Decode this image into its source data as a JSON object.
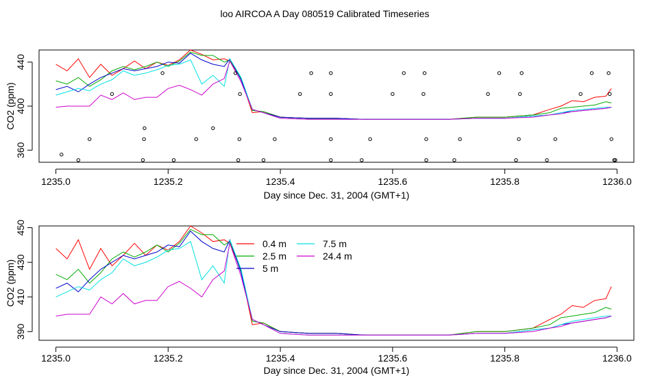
{
  "page": {
    "title": "loo AIRCOA A  Day 080519  Calibrated Timeseries"
  },
  "chart_data": [
    {
      "type": "line",
      "xlabel": "Day since Dec. 31, 2004 (GMT+1)",
      "ylabel": "CO2 (ppm)",
      "xlim": [
        1234.97,
        1236.03
      ],
      "ylim": [
        349,
        451
      ],
      "x_ticks": [
        1235.0,
        1235.2,
        1235.4,
        1235.6,
        1235.8,
        1236.0
      ],
      "x_tick_labels": [
        "1235.0",
        "1235.2",
        "1235.4",
        "1235.6",
        "1235.8",
        "1236.0"
      ],
      "y_ticks": [
        360,
        400,
        440
      ],
      "y_tick_labels": [
        "360",
        "400",
        "440"
      ],
      "grid": false,
      "series": [
        {
          "color": "#ff0000",
          "x": [
            1235.0,
            1235.02,
            1235.04,
            1235.06,
            1235.08,
            1235.1,
            1235.12,
            1235.14,
            1235.16,
            1235.18,
            1235.2,
            1235.22,
            1235.24,
            1235.26,
            1235.28,
            1235.3,
            1235.31,
            1235.33,
            1235.35,
            1235.37,
            1235.4,
            1235.45,
            1235.5,
            1235.55,
            1235.6,
            1235.65,
            1235.7,
            1235.75,
            1235.8,
            1235.85,
            1235.88,
            1235.9,
            1235.92,
            1235.94,
            1235.96,
            1235.98,
            1235.99
          ],
          "y": [
            438,
            432,
            443,
            426,
            438,
            428,
            434,
            441,
            434,
            440,
            437,
            442,
            451,
            447,
            442,
            443,
            441,
            425,
            394,
            395,
            390,
            389,
            389,
            388,
            388,
            388,
            388,
            390,
            390,
            392,
            397,
            400,
            405,
            404,
            408,
            409,
            416
          ]
        },
        {
          "color": "#00aa00",
          "x": [
            1235.0,
            1235.02,
            1235.04,
            1235.06,
            1235.08,
            1235.1,
            1235.12,
            1235.14,
            1235.16,
            1235.18,
            1235.2,
            1235.22,
            1235.24,
            1235.26,
            1235.28,
            1235.3,
            1235.31,
            1235.33,
            1235.35,
            1235.37,
            1235.4,
            1235.45,
            1235.5,
            1235.55,
            1235.6,
            1235.65,
            1235.7,
            1235.75,
            1235.8,
            1235.85,
            1235.88,
            1235.9,
            1235.92,
            1235.94,
            1235.96,
            1235.98,
            1235.99
          ],
          "y": [
            423,
            420,
            426,
            418,
            424,
            432,
            436,
            433,
            436,
            440,
            436,
            441,
            449,
            446,
            446,
            440,
            442,
            425,
            396,
            395,
            390,
            389,
            389,
            388,
            388,
            388,
            388,
            390,
            390,
            392,
            394,
            398,
            399,
            400,
            401,
            404,
            403
          ]
        },
        {
          "color": "#0000cc",
          "x": [
            1235.0,
            1235.02,
            1235.04,
            1235.06,
            1235.08,
            1235.1,
            1235.12,
            1235.14,
            1235.16,
            1235.18,
            1235.2,
            1235.22,
            1235.24,
            1235.26,
            1235.28,
            1235.3,
            1235.31,
            1235.33,
            1235.35,
            1235.37,
            1235.4,
            1235.45,
            1235.5,
            1235.55,
            1235.6,
            1235.65,
            1235.7,
            1235.75,
            1235.8,
            1235.85,
            1235.88,
            1235.9,
            1235.92,
            1235.94,
            1235.96,
            1235.98,
            1235.99
          ],
          "y": [
            415,
            418,
            413,
            420,
            426,
            430,
            434,
            432,
            434,
            436,
            440,
            439,
            448,
            442,
            438,
            436,
            443,
            424,
            397,
            394,
            390,
            389,
            389,
            388,
            388,
            388,
            388,
            389,
            389,
            391,
            392,
            394,
            395,
            396,
            397,
            398,
            399
          ]
        },
        {
          "color": "#00e0e0",
          "x": [
            1235.0,
            1235.02,
            1235.04,
            1235.06,
            1235.08,
            1235.1,
            1235.12,
            1235.14,
            1235.16,
            1235.18,
            1235.2,
            1235.22,
            1235.24,
            1235.26,
            1235.28,
            1235.3,
            1235.31,
            1235.33,
            1235.35,
            1235.37,
            1235.4,
            1235.45,
            1235.5,
            1235.55,
            1235.6,
            1235.65,
            1235.7,
            1235.75,
            1235.8,
            1235.85,
            1235.88,
            1235.9,
            1235.92,
            1235.94,
            1235.96,
            1235.98,
            1235.99
          ],
          "y": [
            410,
            413,
            416,
            414,
            420,
            424,
            432,
            428,
            430,
            433,
            437,
            438,
            442,
            420,
            428,
            418,
            443,
            426,
            397,
            394,
            389,
            388,
            388,
            388,
            388,
            388,
            388,
            389,
            389,
            391,
            392,
            394,
            396,
            397,
            398,
            399,
            399
          ]
        },
        {
          "color": "#cc00cc",
          "x": [
            1235.0,
            1235.02,
            1235.04,
            1235.06,
            1235.08,
            1235.1,
            1235.12,
            1235.14,
            1235.16,
            1235.18,
            1235.2,
            1235.22,
            1235.24,
            1235.26,
            1235.28,
            1235.3,
            1235.31,
            1235.33,
            1235.35,
            1235.37,
            1235.4,
            1235.45,
            1235.5,
            1235.55,
            1235.6,
            1235.65,
            1235.7,
            1235.75,
            1235.8,
            1235.85,
            1235.88,
            1235.9,
            1235.92,
            1235.94,
            1235.96,
            1235.98,
            1235.99
          ],
          "y": [
            399,
            400,
            400,
            400,
            410,
            406,
            412,
            406,
            408,
            408,
            416,
            419,
            415,
            410,
            420,
            425,
            441,
            422,
            397,
            394,
            389,
            388,
            388,
            388,
            388,
            388,
            388,
            389,
            389,
            390,
            392,
            393,
            395,
            396,
            397,
            398,
            399
          ]
        }
      ],
      "points": {
        "x": [
          1235.01,
          1235.04,
          1235.06,
          1235.1,
          1235.155,
          1235.157,
          1235.158,
          1235.19,
          1235.21,
          1235.25,
          1235.28,
          1235.32,
          1235.325,
          1235.327,
          1235.328,
          1235.37,
          1235.39,
          1235.435,
          1235.455,
          1235.49,
          1235.49,
          1235.49,
          1235.49,
          1235.545,
          1235.56,
          1235.6,
          1235.62,
          1235.655,
          1235.657,
          1235.66,
          1235.66,
          1235.71,
          1235.72,
          1235.77,
          1235.79,
          1235.82,
          1235.825,
          1235.827,
          1235.83,
          1235.875,
          1235.89,
          1235.935,
          1235.955,
          1235.985,
          1235.987,
          1235.99,
          1235.995,
          1235.997
        ],
        "y": [
          356,
          351,
          370,
          411,
          351,
          370,
          380,
          430,
          351,
          370,
          380,
          430,
          351,
          370,
          411,
          351,
          370,
          411,
          430,
          351,
          370,
          411,
          430,
          351,
          370,
          411,
          430,
          411,
          430,
          370,
          351,
          351,
          370,
          411,
          430,
          351,
          370,
          411,
          430,
          351,
          370,
          411,
          430,
          430,
          411,
          370,
          351,
          351
        ]
      }
    },
    {
      "type": "line",
      "xlabel": "Day since Dec. 31, 2004 (GMT+1)",
      "ylabel": "CO2 (ppm)",
      "xlim": [
        1234.97,
        1236.03
      ],
      "ylim": [
        385,
        451
      ],
      "x_ticks": [
        1235.0,
        1235.2,
        1235.4,
        1235.6,
        1235.8,
        1236.0
      ],
      "x_tick_labels": [
        "1235.0",
        "1235.2",
        "1235.4",
        "1235.6",
        "1235.8",
        "1236.0"
      ],
      "y_ticks": [
        390,
        410,
        430,
        450
      ],
      "y_tick_labels": [
        "390",
        "410",
        "430",
        "450"
      ],
      "grid": false,
      "legend": {
        "placement": "top-center",
        "entries": [
          {
            "name": "0.4 m",
            "color": "#ff0000"
          },
          {
            "name": "2.5 m",
            "color": "#00aa00"
          },
          {
            "name": "5 m",
            "color": "#0000cc"
          },
          {
            "name": "7.5 m",
            "color": "#00e0e0"
          },
          {
            "name": "24.4 m",
            "color": "#cc00cc"
          }
        ]
      },
      "series": [
        {
          "name": "0.4 m",
          "color": "#ff0000",
          "x": [
            1235.0,
            1235.02,
            1235.04,
            1235.06,
            1235.08,
            1235.1,
            1235.12,
            1235.14,
            1235.16,
            1235.18,
            1235.2,
            1235.22,
            1235.24,
            1235.26,
            1235.28,
            1235.3,
            1235.31,
            1235.33,
            1235.35,
            1235.37,
            1235.4,
            1235.45,
            1235.5,
            1235.55,
            1235.6,
            1235.65,
            1235.7,
            1235.75,
            1235.8,
            1235.85,
            1235.88,
            1235.9,
            1235.92,
            1235.94,
            1235.96,
            1235.98,
            1235.99
          ],
          "y": [
            438,
            432,
            443,
            426,
            438,
            428,
            434,
            441,
            434,
            440,
            437,
            442,
            451,
            447,
            442,
            443,
            441,
            425,
            394,
            395,
            390,
            389,
            389,
            388,
            388,
            388,
            388,
            390,
            390,
            392,
            397,
            400,
            405,
            404,
            408,
            409,
            416
          ]
        },
        {
          "name": "2.5 m",
          "color": "#00aa00",
          "x": [
            1235.0,
            1235.02,
            1235.04,
            1235.06,
            1235.08,
            1235.1,
            1235.12,
            1235.14,
            1235.16,
            1235.18,
            1235.2,
            1235.22,
            1235.24,
            1235.26,
            1235.28,
            1235.3,
            1235.31,
            1235.33,
            1235.35,
            1235.37,
            1235.4,
            1235.45,
            1235.5,
            1235.55,
            1235.6,
            1235.65,
            1235.7,
            1235.75,
            1235.8,
            1235.85,
            1235.88,
            1235.9,
            1235.92,
            1235.94,
            1235.96,
            1235.98,
            1235.99
          ],
          "y": [
            423,
            420,
            426,
            418,
            424,
            432,
            436,
            433,
            436,
            440,
            436,
            441,
            449,
            446,
            446,
            440,
            442,
            425,
            396,
            395,
            390,
            389,
            389,
            388,
            388,
            388,
            388,
            390,
            390,
            392,
            394,
            398,
            399,
            400,
            401,
            404,
            403
          ]
        },
        {
          "name": "5 m",
          "color": "#0000cc",
          "x": [
            1235.0,
            1235.02,
            1235.04,
            1235.06,
            1235.08,
            1235.1,
            1235.12,
            1235.14,
            1235.16,
            1235.18,
            1235.2,
            1235.22,
            1235.24,
            1235.26,
            1235.28,
            1235.3,
            1235.31,
            1235.33,
            1235.35,
            1235.37,
            1235.4,
            1235.45,
            1235.5,
            1235.55,
            1235.6,
            1235.65,
            1235.7,
            1235.75,
            1235.8,
            1235.85,
            1235.88,
            1235.9,
            1235.92,
            1235.94,
            1235.96,
            1235.98,
            1235.99
          ],
          "y": [
            415,
            418,
            413,
            420,
            426,
            430,
            434,
            432,
            434,
            436,
            440,
            439,
            448,
            442,
            438,
            436,
            443,
            424,
            397,
            394,
            390,
            389,
            389,
            388,
            388,
            388,
            388,
            389,
            389,
            391,
            392,
            394,
            395,
            396,
            397,
            398,
            399
          ]
        },
        {
          "name": "7.5 m",
          "color": "#00e0e0",
          "x": [
            1235.0,
            1235.02,
            1235.04,
            1235.06,
            1235.08,
            1235.1,
            1235.12,
            1235.14,
            1235.16,
            1235.18,
            1235.2,
            1235.22,
            1235.24,
            1235.26,
            1235.28,
            1235.3,
            1235.31,
            1235.33,
            1235.35,
            1235.37,
            1235.4,
            1235.45,
            1235.5,
            1235.55,
            1235.6,
            1235.65,
            1235.7,
            1235.75,
            1235.8,
            1235.85,
            1235.88,
            1235.9,
            1235.92,
            1235.94,
            1235.96,
            1235.98,
            1235.99
          ],
          "y": [
            410,
            413,
            416,
            414,
            420,
            424,
            432,
            428,
            430,
            433,
            437,
            438,
            442,
            420,
            428,
            418,
            443,
            426,
            397,
            394,
            389,
            388,
            388,
            388,
            388,
            388,
            388,
            389,
            389,
            391,
            392,
            394,
            396,
            397,
            398,
            399,
            399
          ]
        },
        {
          "name": "24.4 m",
          "color": "#cc00cc",
          "x": [
            1235.0,
            1235.02,
            1235.04,
            1235.06,
            1235.08,
            1235.1,
            1235.12,
            1235.14,
            1235.16,
            1235.18,
            1235.2,
            1235.22,
            1235.24,
            1235.26,
            1235.28,
            1235.3,
            1235.31,
            1235.33,
            1235.35,
            1235.37,
            1235.4,
            1235.45,
            1235.5,
            1235.55,
            1235.6,
            1235.65,
            1235.7,
            1235.75,
            1235.8,
            1235.85,
            1235.88,
            1235.9,
            1235.92,
            1235.94,
            1235.96,
            1235.98,
            1235.99
          ],
          "y": [
            399,
            400,
            400,
            400,
            410,
            406,
            412,
            406,
            408,
            408,
            416,
            419,
            415,
            410,
            420,
            425,
            441,
            422,
            397,
            394,
            389,
            388,
            388,
            388,
            388,
            388,
            388,
            389,
            389,
            390,
            392,
            393,
            395,
            396,
            397,
            398,
            399
          ]
        }
      ]
    }
  ]
}
